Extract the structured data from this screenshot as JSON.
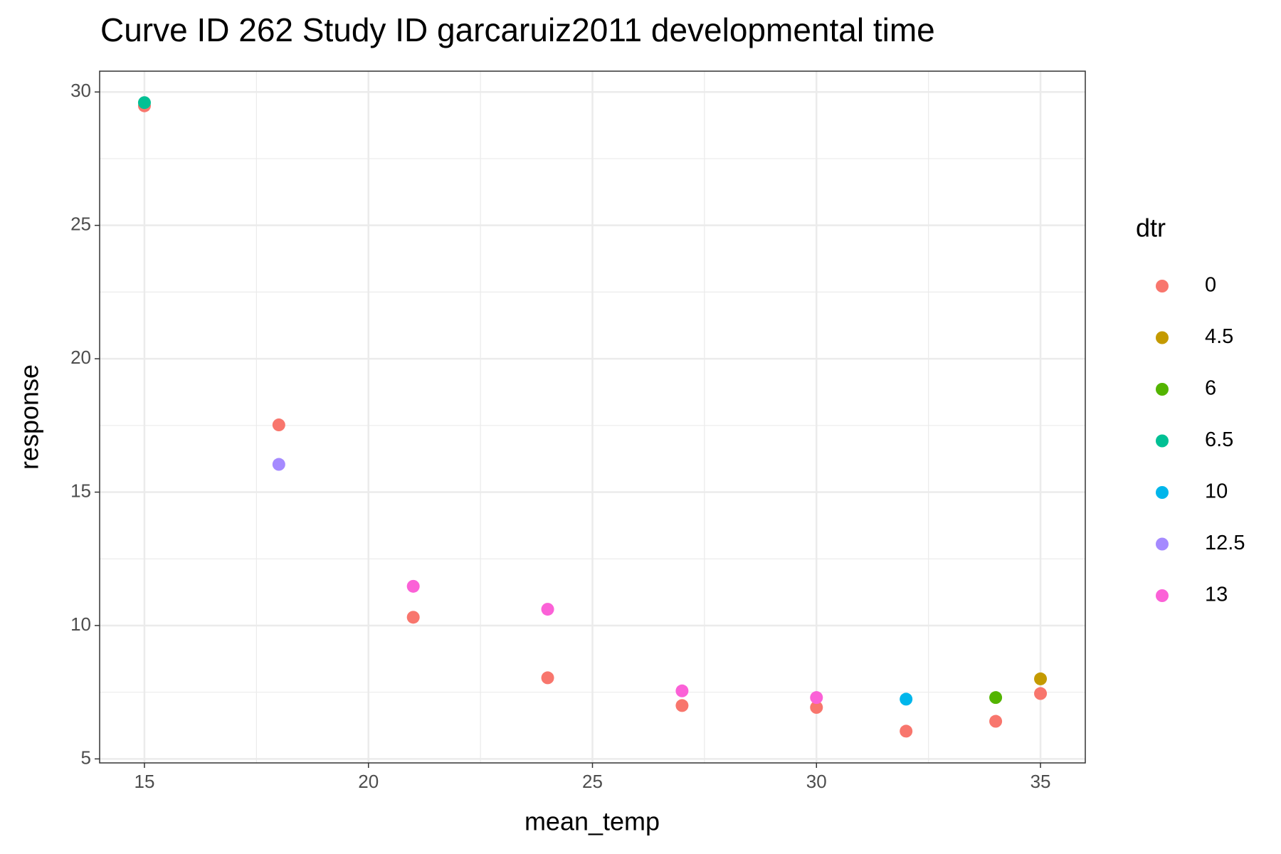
{
  "chart_data": {
    "type": "scatter",
    "title": "Curve ID 262 Study ID garcaruiz2011 developmental time",
    "x_label": "mean_temp",
    "y_label": "response",
    "legend_title": "dtr",
    "xlim": [
      14,
      36
    ],
    "xticks": [
      15,
      20,
      25,
      30,
      35
    ],
    "xminor": [
      17.5,
      22.5,
      27.5,
      32.5
    ],
    "ylim": [
      4.85,
      30.78
    ],
    "yticks": [
      5,
      10,
      15,
      20,
      25,
      30
    ],
    "yminor": [
      7.5,
      12.5,
      17.5,
      22.5,
      27.5
    ],
    "grid": true,
    "legend": "right",
    "series": [
      {
        "name": "0",
        "color": "#F8766D",
        "x": [
          15,
          18,
          21,
          24,
          27,
          30,
          32,
          34,
          35
        ],
        "values": [
          29.48,
          17.52,
          10.31,
          8.04,
          7.0,
          6.93,
          6.04,
          6.41,
          7.45
        ]
      },
      {
        "name": "4.5",
        "color": "#C49A00",
        "x": [
          35
        ],
        "values": [
          8.0
        ]
      },
      {
        "name": "6",
        "color": "#53B400",
        "x": [
          34
        ],
        "values": [
          7.3
        ]
      },
      {
        "name": "6.5",
        "color": "#00C094",
        "x": [
          15
        ],
        "values": [
          29.6
        ]
      },
      {
        "name": "10",
        "color": "#00B6EB",
        "x": [
          32
        ],
        "values": [
          7.24
        ]
      },
      {
        "name": "12.5",
        "color": "#A58AFF",
        "x": [
          18
        ],
        "values": [
          16.04
        ]
      },
      {
        "name": "13",
        "color": "#FB61D7",
        "x": [
          21,
          24,
          27,
          30
        ],
        "values": [
          11.47,
          10.61,
          7.55,
          7.3
        ]
      }
    ]
  }
}
